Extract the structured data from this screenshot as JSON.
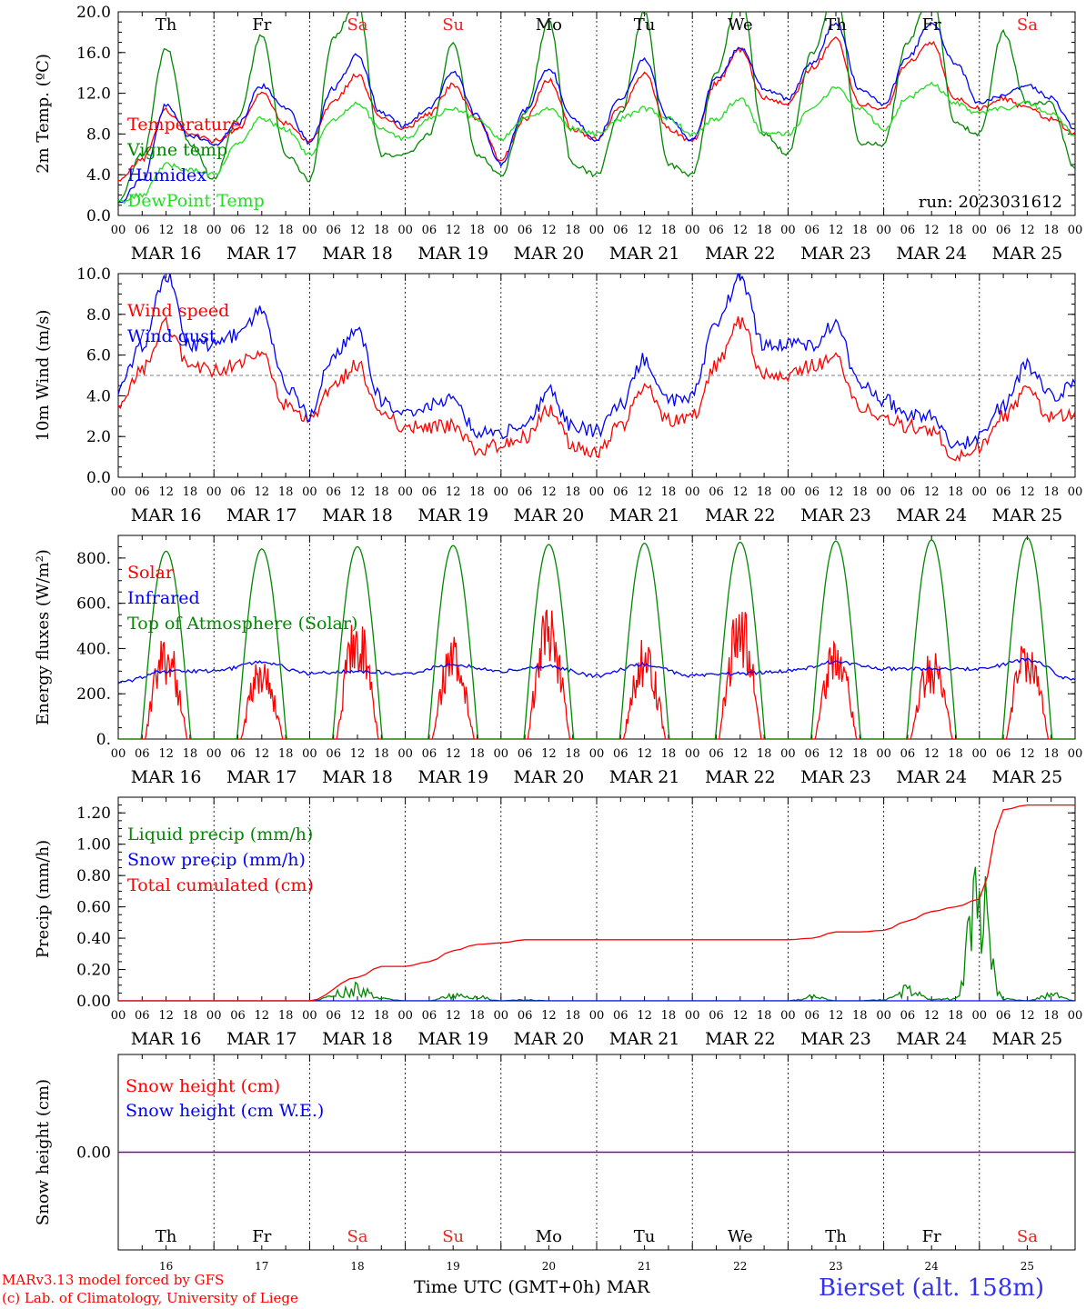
{
  "days": [
    {
      "dow": "Th",
      "date": "MAR 16",
      "num": "16",
      "weekend": false
    },
    {
      "dow": "Fr",
      "date": "MAR 17",
      "num": "17",
      "weekend": false
    },
    {
      "dow": "Sa",
      "date": "MAR 18",
      "num": "18",
      "weekend": true
    },
    {
      "dow": "Su",
      "date": "MAR 19",
      "num": "19",
      "weekend": true
    },
    {
      "dow": "Mo",
      "date": "MAR 20",
      "num": "20",
      "weekend": false
    },
    {
      "dow": "Tu",
      "date": "MAR 21",
      "num": "21",
      "weekend": false
    },
    {
      "dow": "We",
      "date": "MAR 22",
      "num": "22",
      "weekend": false
    },
    {
      "dow": "Th",
      "date": "MAR 23",
      "num": "23",
      "weekend": false
    },
    {
      "dow": "Fr",
      "date": "MAR 24",
      "num": "24",
      "weekend": false
    },
    {
      "dow": "Sa",
      "date": "MAR 25",
      "num": "25",
      "weekend": true
    }
  ],
  "hour_ticks": [
    "00",
    "06",
    "12",
    "18"
  ],
  "final_tick": "00",
  "colors": {
    "red": "#ff0000",
    "dark_green": "#008800",
    "blue": "#0000ff",
    "light_green": "#22dd22",
    "purple": "#7700aa",
    "weekend": "#ee2222",
    "station": "#3333ee"
  },
  "footer": {
    "credit1": "MARv3.13 model forced by GFS",
    "credit2": "(c) Lab. of Climatology, University of Liege",
    "xtitle": "Time UTC (GMT+0h) MAR",
    "station": "Bierset (alt. 158m)"
  },
  "chart_data": [
    {
      "id": "temp",
      "type": "line",
      "ylabel": "2m Temp. (ºC)",
      "ylim": [
        0,
        20
      ],
      "yticks": [
        "0.0",
        "4.0",
        "8.0",
        "12.0",
        "16.0",
        "20.0"
      ],
      "annotation": "run: 2023031612",
      "show_dow": true,
      "x": [
        0,
        6,
        12,
        18,
        24,
        30,
        36,
        42,
        48,
        54,
        60,
        66,
        72,
        78,
        84,
        90,
        96,
        102,
        108,
        114,
        120,
        126,
        132,
        138,
        144,
        150,
        156,
        162,
        168,
        174,
        180,
        186,
        192,
        198,
        204,
        210,
        216,
        222,
        228,
        234,
        240
      ],
      "series": [
        {
          "name": "Temperature",
          "color": "red",
          "values": [
            3.3,
            5.5,
            10.3,
            8.0,
            7.3,
            8.5,
            12.0,
            9.0,
            7.2,
            11.2,
            13.8,
            9.5,
            8.6,
            10.0,
            12.8,
            9.5,
            5.5,
            9.5,
            13.3,
            8.5,
            7.5,
            10.5,
            14.0,
            8.5,
            7.3,
            13.0,
            16.3,
            11.5,
            11.0,
            14.5,
            17.3,
            11.0,
            10.5,
            15.0,
            17.0,
            11.5,
            10.5,
            11.5,
            10.5,
            9.5,
            8.0
          ]
        },
        {
          "name": "Vigne temp",
          "color": "dark_green",
          "values": [
            1.3,
            6.0,
            16.5,
            7.0,
            3.5,
            9.5,
            17.7,
            6.0,
            3.5,
            17.5,
            21.0,
            6.0,
            6.0,
            8.0,
            17.0,
            6.0,
            4.0,
            10.0,
            19.0,
            5.0,
            4.0,
            10.0,
            20.0,
            5.0,
            4.0,
            14.0,
            22.0,
            8.0,
            6.0,
            16.0,
            22.0,
            7.0,
            7.0,
            17.0,
            22.0,
            9.0,
            8.0,
            18.0,
            11.0,
            11.0,
            4.5
          ]
        },
        {
          "name": "Humidex",
          "color": "blue",
          "values": [
            1.3,
            3.5,
            10.8,
            7.8,
            7.0,
            9.0,
            12.7,
            10.5,
            7.2,
            12.5,
            15.7,
            10.0,
            8.8,
            10.5,
            14.1,
            9.8,
            5.0,
            10.3,
            14.5,
            9.5,
            7.5,
            11.5,
            15.3,
            9.5,
            7.4,
            13.5,
            16.5,
            12.5,
            11.5,
            15.0,
            19.0,
            12.5,
            11.0,
            15.5,
            19.0,
            15.0,
            11.0,
            11.8,
            12.8,
            11.5,
            8.5
          ]
        },
        {
          "name": "DewPoint Temp",
          "color": "light_green",
          "values": [
            1.3,
            2.0,
            5.0,
            4.5,
            4.0,
            7.0,
            9.5,
            8.5,
            6.0,
            9.5,
            11.0,
            8.5,
            7.5,
            9.5,
            10.5,
            9.5,
            7.5,
            9.5,
            10.5,
            8.5,
            8.0,
            9.5,
            10.5,
            9.5,
            8.0,
            9.5,
            11.5,
            8.0,
            8.0,
            10.5,
            12.5,
            10.5,
            8.5,
            11.5,
            13.0,
            11.0,
            10.0,
            10.5,
            11.0,
            10.0,
            8.0
          ]
        }
      ]
    },
    {
      "id": "wind",
      "type": "line",
      "ylabel": "10m Wind (m/s)",
      "ylim": [
        0,
        10
      ],
      "yticks": [
        "0.0",
        "2.0",
        "4.0",
        "6.0",
        "8.0",
        "10.0"
      ],
      "refline": 5,
      "x": [
        0,
        6,
        12,
        18,
        24,
        30,
        36,
        42,
        48,
        54,
        60,
        66,
        72,
        78,
        84,
        90,
        96,
        102,
        108,
        114,
        120,
        126,
        132,
        138,
        144,
        150,
        156,
        162,
        168,
        174,
        180,
        186,
        192,
        198,
        204,
        210,
        216,
        222,
        228,
        234,
        240
      ],
      "series": [
        {
          "name": "Wind speed",
          "color": "red",
          "values": [
            3.3,
            5.3,
            7.5,
            5.5,
            5.2,
            5.6,
            6.0,
            3.5,
            2.7,
            4.5,
            5.5,
            3.0,
            2.5,
            2.5,
            2.5,
            1.3,
            1.6,
            2.0,
            3.3,
            1.6,
            1.2,
            2.5,
            4.5,
            2.8,
            3.0,
            5.5,
            7.6,
            5.0,
            5.0,
            5.5,
            5.8,
            3.5,
            3.0,
            2.5,
            2.3,
            1.0,
            1.5,
            3.0,
            4.2,
            3.0,
            3.0
          ]
        },
        {
          "name": "Wind gust",
          "color": "blue",
          "values": [
            4.3,
            6.5,
            9.9,
            6.5,
            6.5,
            7.0,
            8.2,
            4.5,
            3.0,
            6.0,
            7.3,
            3.8,
            3.2,
            3.5,
            4.0,
            2.2,
            2.2,
            2.5,
            4.2,
            2.5,
            2.3,
            3.5,
            5.8,
            3.8,
            4.0,
            7.5,
            9.8,
            6.5,
            6.5,
            6.5,
            7.5,
            4.5,
            3.8,
            3.0,
            3.0,
            1.5,
            2.0,
            3.5,
            5.5,
            4.0,
            4.5
          ]
        }
      ]
    },
    {
      "id": "energy",
      "type": "line",
      "ylabel": "Energy fluxes (W/m²)",
      "ylim": [
        0,
        900
      ],
      "yticks": [
        "0.",
        "200.",
        "400.",
        "600.",
        "800."
      ],
      "peaks": {
        "hour": 12,
        "top": [
          830,
          840,
          850,
          855,
          860,
          865,
          870,
          875,
          880,
          890
        ],
        "solar": [
          480,
          370,
          580,
          470,
          610,
          450,
          630,
          460,
          400,
          470
        ]
      },
      "x": [
        0,
        12,
        24,
        36,
        48,
        60,
        72,
        84,
        96,
        108,
        120,
        132,
        144,
        156,
        168,
        180,
        192,
        204,
        216,
        228,
        240
      ],
      "series": [
        {
          "name": "Solar",
          "color": "red",
          "values": [
            0,
            480,
            0,
            370,
            0,
            580,
            0,
            470,
            0,
            610,
            0,
            450,
            0,
            630,
            0,
            460,
            0,
            400,
            0,
            470,
            0
          ]
        },
        {
          "name": "Infrared",
          "color": "blue",
          "values": [
            250,
            300,
            300,
            340,
            290,
            300,
            290,
            330,
            300,
            320,
            280,
            330,
            280,
            290,
            300,
            340,
            310,
            310,
            310,
            350,
            260
          ]
        },
        {
          "name": "Top of Atmosphere (Solar)",
          "color": "dark_green",
          "values": [
            0,
            830,
            0,
            840,
            0,
            850,
            0,
            855,
            0,
            860,
            0,
            865,
            0,
            870,
            0,
            875,
            0,
            880,
            0,
            890,
            0
          ]
        }
      ]
    },
    {
      "id": "precip",
      "type": "line",
      "ylabel": "Precip (mm/h)",
      "ylim": [
        0,
        1.3
      ],
      "yticks": [
        "0.00",
        "0.20",
        "0.40",
        "0.60",
        "0.80",
        "1.00",
        "1.20"
      ],
      "x": [
        0,
        48,
        60,
        66,
        72,
        78,
        84,
        90,
        96,
        102,
        108,
        114,
        120,
        126,
        132,
        138,
        144,
        150,
        156,
        162,
        168,
        174,
        180,
        186,
        192,
        198,
        204,
        210,
        216,
        222,
        228,
        234,
        240
      ],
      "series": [
        {
          "name": "Liquid precip (mm/h)",
          "color": "dark_green",
          "values": [
            0,
            0,
            0.12,
            0.02,
            0,
            0,
            0.05,
            0.04,
            0,
            0.01,
            0,
            0,
            0,
            0,
            0,
            0,
            0,
            0,
            0,
            0,
            0,
            0.04,
            0,
            0,
            0.01,
            0.12,
            0.01,
            0.02,
            1.0,
            0.02,
            0,
            0.06,
            0
          ]
        },
        {
          "name": "Snow precip (mm/h)",
          "color": "blue",
          "values": [
            0,
            0,
            0,
            0,
            0,
            0,
            0,
            0,
            0,
            0,
            0,
            0,
            0,
            0,
            0,
            0,
            0,
            0,
            0,
            0,
            0,
            0,
            0,
            0,
            0,
            0,
            0,
            0,
            0,
            0,
            0,
            0,
            0
          ]
        },
        {
          "name": "Total cumulated (cm)",
          "color": "red",
          "values": [
            0,
            0,
            0.15,
            0.22,
            0.22,
            0.25,
            0.32,
            0.36,
            0.37,
            0.39,
            0.39,
            0.39,
            0.39,
            0.39,
            0.39,
            0.39,
            0.39,
            0.39,
            0.39,
            0.39,
            0.39,
            0.4,
            0.44,
            0.44,
            0.45,
            0.51,
            0.57,
            0.6,
            0.65,
            1.22,
            1.25,
            1.25,
            1.25
          ]
        }
      ]
    },
    {
      "id": "snow",
      "type": "line",
      "ylabel": "Snow height (cm)",
      "ylim": [
        -1,
        1
      ],
      "yticks_mid": "0.00",
      "x": [
        0,
        240
      ],
      "series": [
        {
          "name": "Snow height (cm)",
          "color": "red",
          "values": [
            0,
            0
          ]
        },
        {
          "name": "Snow height (cm W.E.)",
          "color": "blue",
          "values": [
            0,
            0
          ]
        }
      ]
    }
  ]
}
